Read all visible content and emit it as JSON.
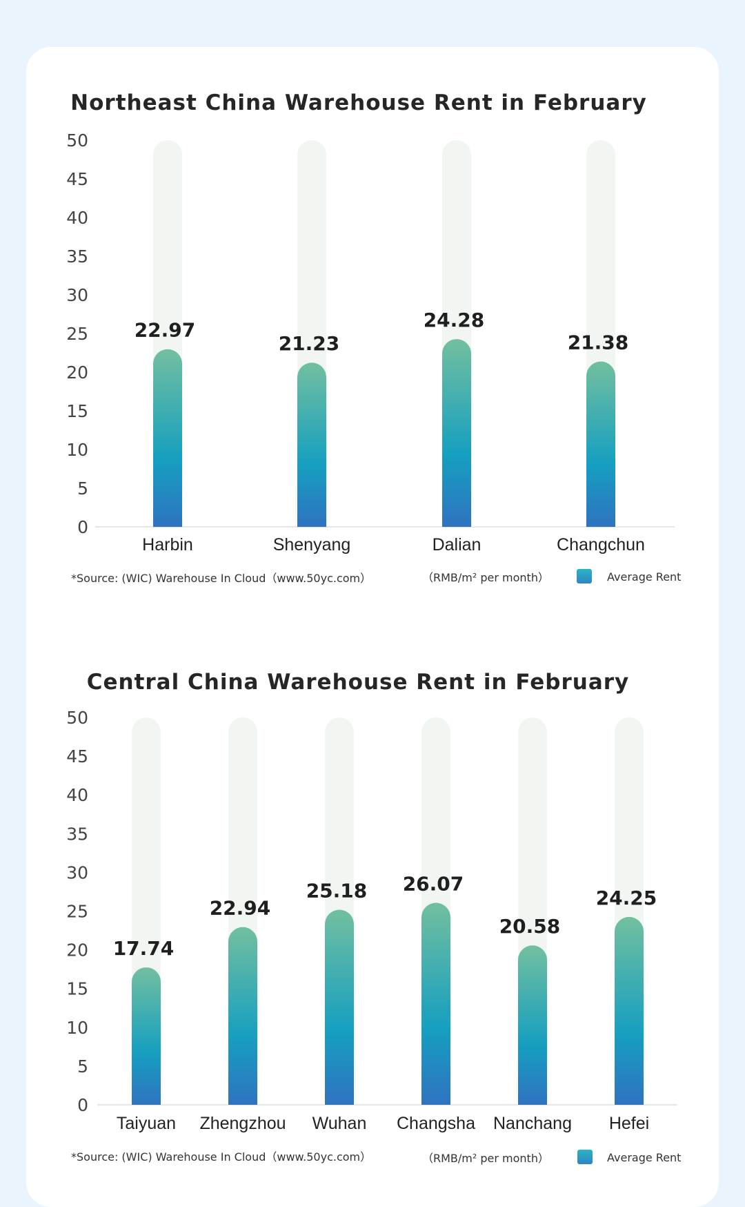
{
  "colors": {
    "page_bg": "#e9f4fd",
    "card_bg": "#ffffff",
    "track": "#f1f6f3",
    "bar_top": "#72bf9f",
    "bar_mid": "#169fc0",
    "bar_bottom": "#2f73c0"
  },
  "chart_data": [
    {
      "type": "bar",
      "title": "Northeast China Warehouse Rent in February",
      "categories": [
        "Harbin",
        "Shenyang",
        "Dalian",
        "Changchun"
      ],
      "series": [
        {
          "name": "Average Rent",
          "values": [
            22.97,
            21.23,
            24.28,
            21.38
          ]
        }
      ],
      "value_labels": [
        "22.97",
        "21.23",
        "24.28",
        "21.38"
      ],
      "ylim": [
        0,
        50
      ],
      "yticks": [
        "0",
        "5",
        "10",
        "15",
        "20",
        "25",
        "30",
        "35",
        "40",
        "45",
        "50"
      ],
      "source": "*Source: (WIC) Warehouse In Cloud（www.50yc.com）",
      "unit": "（RMB/m² per month）",
      "legend": "Average Rent",
      "grid": false
    },
    {
      "type": "bar",
      "title": "Central China Warehouse Rent in February",
      "categories": [
        "Taiyuan",
        "Zhengzhou",
        "Wuhan",
        "Changsha",
        "Nanchang",
        "Hefei"
      ],
      "series": [
        {
          "name": "Average Rent",
          "values": [
            17.74,
            22.94,
            25.18,
            26.07,
            20.58,
            24.25
          ]
        }
      ],
      "value_labels": [
        "17.74",
        "22.94",
        "25.18",
        "26.07",
        "20.58",
        "24.25"
      ],
      "ylim": [
        0,
        50
      ],
      "yticks": [
        "0",
        "5",
        "10",
        "15",
        "20",
        "25",
        "30",
        "35",
        "40",
        "45",
        "50"
      ],
      "source": "*Source: (WIC) Warehouse In Cloud（www.50yc.com）",
      "unit": "（RMB/m² per month）",
      "legend": "Average Rent",
      "grid": false
    }
  ]
}
